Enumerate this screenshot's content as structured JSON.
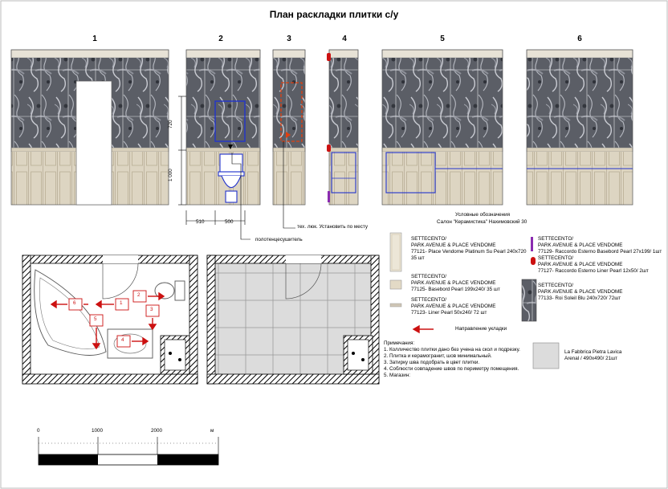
{
  "title": "План раскладки плитки с/у",
  "elevations": [
    "1",
    "2",
    "3",
    "4",
    "5",
    "6"
  ],
  "dimensions": {
    "h_upper": "720",
    "h_lower": "1 000",
    "w_left": "510",
    "w_right": "500"
  },
  "callouts": {
    "hatch": "тех. люк. Установить по месту",
    "towel": "полотенцесушитель"
  },
  "legend": {
    "heading": "Условные обозначения",
    "salon": "Салон \"Керамистика\" Нахимовский 30",
    "items_left": [
      {
        "line1": "SETTECENTO/",
        "line2": "PARK AVENUE & PLACE VENDOME",
        "line3": "77121- Place Vendome Platinum Su Pearl 240x720",
        "line4": "35 шт"
      },
      {
        "line1": "SETTECENTO/",
        "line2": "PARK AVENUE & PLACE VENDOME",
        "line3": "77125- Basebord Pearl 199x240/ 35 шт"
      },
      {
        "line1": "SETTECENTO/",
        "line2": "PARK AVENUE & PLACE VENDOME",
        "line3": "77123- Liner Pearl 50x240/ 72 шт"
      }
    ],
    "items_right": [
      {
        "line1": "SETTECENTO/",
        "line2": "PARK AVENUE & PLACE VENDOME",
        "line3": "77129- Raccordo Esterno Basebord Pearl 27x199/ 1шт"
      },
      {
        "line1": "SETTECENTO/",
        "line2": "PARK AVENUE & PLACE VENDOME",
        "line3": "77127- Raccordo Esterno Liner Pearl 12x50/ 2шт"
      },
      {
        "line1": "SETTECENTO/",
        "line2": "PARK AVENUE & PLACE VENDOME",
        "line3": "77133- Roi Soleil Blu 240x720/ 72шт"
      }
    ],
    "direction": "Направление укладки",
    "floor_tile": {
      "line1": "La Fabbrica Pietra Lavica",
      "line2": "Arenal / 490x490/ 21шт"
    }
  },
  "notes": {
    "heading": "Примечания:",
    "items": [
      "1. Колличество плитки дано без учена на скол и подрезку.",
      "2. Плитка и керамогранит, шов минимальный.",
      "3. Затирку шва подобрать в цвет плитки.",
      "4. Соблюсти совпадение швов по периметру помещения.",
      "5. Магазин:"
    ]
  },
  "plan_marks": [
    "1",
    "2",
    "3",
    "4",
    "5",
    "6"
  ],
  "scale": {
    "ticks": [
      "0",
      "1000",
      "2000"
    ],
    "unit": "м"
  },
  "colors": {
    "accent_red": "#cc1111",
    "outline_blue": "#2233cc",
    "hatch_orange": "#e04010",
    "base_tile": "#ddd5c2",
    "floor_tile": "#dcdcdc"
  }
}
